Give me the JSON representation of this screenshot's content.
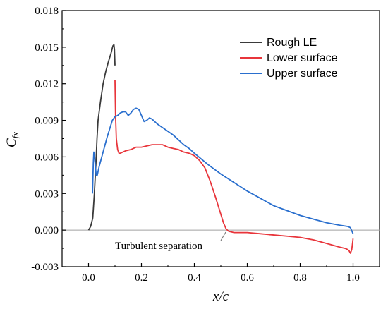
{
  "chart_data": {
    "type": "line",
    "title": "",
    "xlabel": "x/c",
    "ylabel": "C_fx",
    "ylabel_main": "C",
    "ylabel_sub": "fx",
    "xlim": [
      -0.1,
      1.1
    ],
    "ylim": [
      -0.003,
      0.018
    ],
    "xticks": [
      "0.0",
      "0.2",
      "0.4",
      "0.6",
      "0.8",
      "1.0"
    ],
    "yticks": [
      "-0.003",
      "0.000",
      "0.003",
      "0.006",
      "0.009",
      "0.012",
      "0.015",
      "0.018"
    ],
    "grid": false,
    "legend_position": "top-right",
    "annotation": {
      "text": "Turbulent separation",
      "x": 0.52,
      "y": 0.0
    },
    "series": [
      {
        "name": "Rough LE",
        "color": "#3a3a3a",
        "x": [
          0.0,
          0.008,
          0.016,
          0.022,
          0.028,
          0.032,
          0.036,
          0.045,
          0.055,
          0.065,
          0.075,
          0.085,
          0.092,
          0.096,
          0.098,
          0.1
        ],
        "y": [
          0.0,
          0.0003,
          0.001,
          0.003,
          0.0055,
          0.0075,
          0.009,
          0.0105,
          0.012,
          0.013,
          0.0138,
          0.0145,
          0.0151,
          0.0152,
          0.0148,
          0.0135
        ]
      },
      {
        "name": "Lower surface",
        "color": "#e8353b",
        "x": [
          0.1,
          0.102,
          0.105,
          0.11,
          0.115,
          0.12,
          0.14,
          0.16,
          0.18,
          0.2,
          0.22,
          0.24,
          0.26,
          0.28,
          0.3,
          0.32,
          0.34,
          0.36,
          0.38,
          0.4,
          0.42,
          0.44,
          0.46,
          0.48,
          0.5,
          0.51,
          0.52,
          0.53,
          0.55,
          0.6,
          0.65,
          0.7,
          0.75,
          0.8,
          0.85,
          0.9,
          0.95,
          0.97,
          0.98,
          0.985,
          0.99,
          0.995,
          1.0
        ],
        "y": [
          0.0123,
          0.0095,
          0.0075,
          0.0066,
          0.0063,
          0.0063,
          0.0065,
          0.0066,
          0.0068,
          0.0068,
          0.0069,
          0.007,
          0.007,
          0.007,
          0.0068,
          0.0067,
          0.0066,
          0.0064,
          0.0063,
          0.0061,
          0.0057,
          0.0051,
          0.004,
          0.0027,
          0.0013,
          0.0006,
          0.0001,
          -0.0001,
          -0.0002,
          -0.0002,
          -0.0003,
          -0.0004,
          -0.0005,
          -0.0006,
          -0.0008,
          -0.0011,
          -0.0014,
          -0.0015,
          -0.0016,
          -0.0017,
          -0.0019,
          -0.0016,
          -0.0007
        ]
      },
      {
        "name": "Upper surface",
        "color": "#2a6fce",
        "x": [
          0.015,
          0.018,
          0.02,
          0.023,
          0.026,
          0.029,
          0.033,
          0.04,
          0.05,
          0.06,
          0.07,
          0.08,
          0.09,
          0.1,
          0.11,
          0.12,
          0.13,
          0.14,
          0.15,
          0.16,
          0.17,
          0.18,
          0.19,
          0.2,
          0.21,
          0.22,
          0.23,
          0.24,
          0.26,
          0.28,
          0.3,
          0.32,
          0.34,
          0.36,
          0.38,
          0.4,
          0.45,
          0.5,
          0.55,
          0.6,
          0.65,
          0.7,
          0.75,
          0.8,
          0.85,
          0.9,
          0.95,
          0.98,
          0.99,
          1.0
        ],
        "y": [
          0.003,
          0.0055,
          0.0064,
          0.006,
          0.0052,
          0.0045,
          0.0045,
          0.0052,
          0.006,
          0.0068,
          0.0076,
          0.0083,
          0.009,
          0.0093,
          0.0094,
          0.0096,
          0.0097,
          0.0097,
          0.0094,
          0.0096,
          0.0099,
          0.01,
          0.0099,
          0.0094,
          0.0089,
          0.009,
          0.0092,
          0.0091,
          0.0087,
          0.0084,
          0.0081,
          0.0078,
          0.0074,
          0.007,
          0.0067,
          0.0063,
          0.0054,
          0.0046,
          0.0039,
          0.0032,
          0.0026,
          0.002,
          0.0016,
          0.0012,
          0.0009,
          0.0006,
          0.0004,
          0.0003,
          0.0002,
          -0.0003
        ]
      }
    ]
  }
}
